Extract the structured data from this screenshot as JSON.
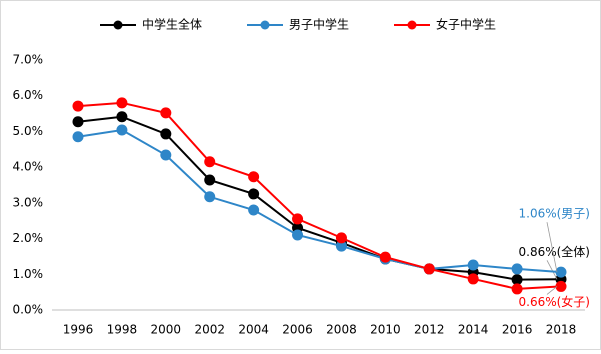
{
  "chart_data": {
    "type": "line",
    "categories": [
      "1996",
      "1998",
      "2000",
      "2002",
      "2004",
      "2006",
      "2008",
      "2010",
      "2012",
      "2014",
      "2016",
      "2018"
    ],
    "series": [
      {
        "name": "中学生全体",
        "color": "#000000",
        "values": [
          5.27,
          5.41,
          4.93,
          3.64,
          3.25,
          2.3,
          1.88,
          1.43,
          1.15,
          1.06,
          0.85,
          0.86
        ],
        "end_label": "0.86%(全体)"
      },
      {
        "name": "男子中学生",
        "color": "#2e86c8",
        "values": [
          4.85,
          5.04,
          4.34,
          3.17,
          2.8,
          2.1,
          1.79,
          1.43,
          1.15,
          1.26,
          1.15,
          1.06
        ],
        "end_label": "1.06%(男子)"
      },
      {
        "name": "女子中学生",
        "color": "#ff0000",
        "values": [
          5.71,
          5.8,
          5.52,
          4.15,
          3.73,
          2.55,
          2.02,
          1.48,
          1.15,
          0.87,
          0.59,
          0.66
        ],
        "end_label": "0.66%(女子)"
      }
    ],
    "ylim": [
      0,
      7
    ],
    "yticks": [
      {
        "value": 0,
        "label": "0.0%"
      },
      {
        "value": 1,
        "label": "1.0%"
      },
      {
        "value": 2,
        "label": "2.0%"
      },
      {
        "value": 3,
        "label": "3.0%"
      },
      {
        "value": 4,
        "label": "4.0%"
      },
      {
        "value": 5,
        "label": "5.0%"
      },
      {
        "value": 6,
        "label": "6.0%"
      },
      {
        "value": 7,
        "label": "7.0%"
      }
    ],
    "grid": false,
    "legend": "top"
  }
}
